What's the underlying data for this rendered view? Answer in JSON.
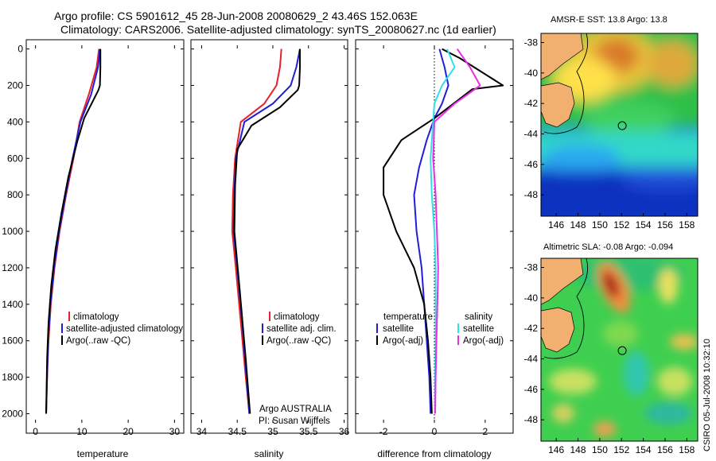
{
  "header": {
    "line1": "Argo profile: CS 5901612_45 28-Jun-2008 20080629_2 43.46S 152.063E",
    "line2": "Climatology: CARS2006. Satellite-adjusted climatology: synTS_20080627.nc (1d earlier)"
  },
  "annotations": {
    "argo_program": "Argo AUSTRALIA",
    "pi": "PI: Susan Wijffels",
    "footer_vertical": "CSIRO 05-Jul-2008 10:32:10"
  },
  "colors": {
    "red": "#e8202a",
    "blue": "#1f1fdb",
    "black": "#000000",
    "cyan": "#30e0e8",
    "magenta": "#e830e0"
  },
  "chart_data": [
    {
      "type": "line",
      "id": "temperature",
      "xlabel": "temperature",
      "ylabel": "",
      "xlim": [
        -2,
        32
      ],
      "ylim": [
        2050,
        -20
      ],
      "xticks": [
        0,
        10,
        20,
        30
      ],
      "yticks": [
        0,
        200,
        400,
        600,
        800,
        1000,
        1200,
        1400,
        1600,
        1800,
        2000
      ],
      "series": [
        {
          "name": "climatology",
          "color": "red",
          "x": [
            13.7,
            13.2,
            11.5,
            9.5,
            8.2,
            6.6,
            5.2,
            4.1,
            3.3,
            2.8,
            2.5,
            2.3
          ],
          "y": [
            0,
            100,
            250,
            400,
            600,
            800,
            1000,
            1200,
            1400,
            1600,
            1800,
            2000
          ]
        },
        {
          "name": "satellite-adjusted climatology",
          "color": "blue",
          "x": [
            13.9,
            13.5,
            12.0,
            9.7,
            8.0,
            6.5,
            5.1,
            4.0,
            3.2,
            2.7,
            2.5,
            2.3
          ],
          "y": [
            0,
            100,
            250,
            400,
            600,
            800,
            1000,
            1200,
            1400,
            1600,
            1800,
            2000
          ]
        },
        {
          "name": "Argo(..raw -QC)",
          "color": "black",
          "x": [
            14.0,
            14.0,
            13.9,
            13.6,
            10.5,
            9.1,
            7.1,
            5.6,
            4.3,
            3.4,
            2.8,
            2.5,
            2.3
          ],
          "y": [
            0,
            100,
            200,
            225,
            380,
            500,
            700,
            900,
            1100,
            1300,
            1500,
            1700,
            2000
          ]
        }
      ]
    },
    {
      "type": "line",
      "id": "salinity",
      "xlabel": "salinity",
      "ylabel": "",
      "xlim": [
        33.85,
        36.05
      ],
      "ylim": [
        2050,
        -20
      ],
      "xticks": [
        34,
        34.5,
        35,
        35.5,
        36
      ],
      "series": [
        {
          "name": "climatology",
          "color": "red",
          "x": [
            35.12,
            35.1,
            35.05,
            34.88,
            34.55,
            34.47,
            34.44,
            34.43,
            34.48,
            34.55,
            34.62,
            34.67
          ],
          "y": [
            0,
            100,
            200,
            300,
            400,
            600,
            800,
            1000,
            1200,
            1500,
            1800,
            2000
          ]
        },
        {
          "name": "satellite adj. clim.",
          "color": "blue",
          "x": [
            35.38,
            35.33,
            35.25,
            35.0,
            34.6,
            34.48,
            34.46,
            34.45,
            34.5,
            34.57,
            34.63,
            34.67
          ],
          "y": [
            0,
            100,
            200,
            300,
            400,
            600,
            800,
            1000,
            1200,
            1500,
            1800,
            2000
          ]
        },
        {
          "name": "Argo(..raw -QC)",
          "color": "black",
          "x": [
            35.38,
            35.38,
            35.37,
            35.35,
            35.1,
            34.7,
            34.5,
            34.47,
            34.46,
            34.53,
            34.62,
            34.68
          ],
          "y": [
            0,
            100,
            200,
            225,
            320,
            420,
            550,
            750,
            1000,
            1300,
            1700,
            2000
          ]
        }
      ]
    },
    {
      "type": "line",
      "id": "difference",
      "xlabel": "difference from climatology",
      "ylabel": "",
      "xlim": [
        -3.1,
        3.1
      ],
      "ylim": [
        2050,
        -20
      ],
      "xticks": [
        -2,
        0,
        2
      ],
      "legend_groups": [
        "temperature",
        "salinity"
      ],
      "series": [
        {
          "name": "satellite",
          "group": "temperature",
          "color": "blue",
          "x": [
            0.2,
            0.4,
            0.55,
            0.3,
            0.0,
            -0.3,
            -0.6,
            -0.8,
            -0.7,
            -0.5,
            -0.4,
            -0.3,
            -0.2,
            -0.15
          ],
          "y": [
            0,
            100,
            200,
            300,
            380,
            500,
            650,
            800,
            1000,
            1200,
            1400,
            1600,
            1800,
            2000
          ]
        },
        {
          "name": "Argo(-adj)",
          "group": "temperature",
          "color": "black",
          "x": [
            0.3,
            1.0,
            2.7,
            1.5,
            0.0,
            -1.3,
            -2.0,
            -2.0,
            -1.5,
            -0.8,
            -0.4,
            -0.25,
            -0.15,
            -0.1
          ],
          "y": [
            0,
            50,
            200,
            220,
            380,
            500,
            650,
            800,
            1000,
            1200,
            1400,
            1600,
            1800,
            2000
          ]
        },
        {
          "name": "satellite",
          "group": "salinity",
          "color": "cyan",
          "x": [
            0.5,
            0.8,
            0.3,
            0.0,
            -0.05,
            -0.15,
            -0.1,
            0.0,
            0.05,
            0.05,
            0.05,
            0.03,
            0.02
          ],
          "y": [
            0,
            100,
            200,
            300,
            400,
            600,
            800,
            1000,
            1200,
            1400,
            1600,
            1800,
            2000
          ]
        },
        {
          "name": "Argo(-adj)",
          "group": "salinity",
          "color": "magenta",
          "x": [
            0.9,
            1.4,
            1.8,
            0.8,
            0.0,
            -0.05,
            0.05,
            0.1,
            0.15,
            0.12,
            0.08,
            0.05,
            0.03
          ],
          "y": [
            0,
            100,
            200,
            300,
            400,
            600,
            800,
            1000,
            1200,
            1400,
            1600,
            1800,
            2000
          ]
        }
      ]
    },
    {
      "type": "heatmap",
      "id": "sst_map",
      "title": "AMSR-E SST: 13.8 Argo: 13.8",
      "xlim": [
        144.6,
        159.0
      ],
      "ylim": [
        -49.4,
        -37.4
      ],
      "xticks": [
        146,
        148,
        150,
        152,
        154,
        156,
        158
      ],
      "yticks": [
        -38,
        -40,
        -42,
        -44,
        -46,
        -48
      ],
      "marker": {
        "lon": 152.063,
        "lat": -43.46
      }
    },
    {
      "type": "heatmap",
      "id": "sla_map",
      "title": "Altimetric SLA: -0.08 Argo: -0.094",
      "xlim": [
        144.6,
        159.0
      ],
      "ylim": [
        -49.4,
        -37.4
      ],
      "xticks": [
        146,
        148,
        150,
        152,
        154,
        156,
        158
      ],
      "yticks": [
        -38,
        -40,
        -42,
        -44,
        -46,
        -48
      ],
      "marker": {
        "lon": 152.063,
        "lat": -43.46
      }
    }
  ]
}
